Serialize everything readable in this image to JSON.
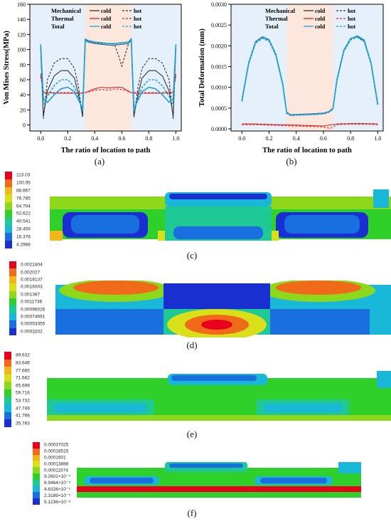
{
  "chart_data": [
    {
      "type": "line",
      "panel": "(a)",
      "xlabel": "The ratio of location to path",
      "ylabel": "Von Mises Stress(MPa)",
      "xlim": [
        -0.08,
        1.04
      ],
      "ylim": [
        -8,
        160
      ],
      "xticks": [
        "0.0",
        "0.2",
        "0.4",
        "0.6",
        "0.8",
        "1.0"
      ],
      "yticks": [
        "0",
        "20",
        "40",
        "60",
        "80",
        "100",
        "120",
        "140",
        "160"
      ],
      "shaded_region": [
        0.33,
        0.67
      ],
      "legend": {
        "rows": [
          "Mechanical",
          "Thermal",
          "Total"
        ],
        "columns": [
          "cold",
          "hot"
        ]
      },
      "series": [
        {
          "group": "Mechanical",
          "name": "cold",
          "color": "#333333",
          "style": "solid",
          "x": [
            0.0,
            0.02,
            0.05,
            0.1,
            0.15,
            0.2,
            0.25,
            0.28,
            0.31,
            0.33,
            0.35,
            0.4,
            0.45,
            0.5,
            0.55,
            0.6,
            0.65,
            0.67,
            0.69,
            0.72,
            0.75,
            0.8,
            0.85,
            0.9,
            0.95,
            0.98,
            1.0
          ],
          "y": [
            103,
            12,
            45,
            65,
            72,
            72,
            62,
            40,
            12,
            113,
            110,
            108,
            107,
            106,
            106,
            107,
            108,
            113,
            12,
            40,
            62,
            72,
            72,
            65,
            45,
            12,
            103
          ]
        },
        {
          "group": "Mechanical",
          "name": "hot",
          "color": "#333333",
          "style": "dash",
          "x": [
            0.0,
            0.02,
            0.05,
            0.1,
            0.15,
            0.2,
            0.25,
            0.28,
            0.31,
            0.33,
            0.35,
            0.4,
            0.45,
            0.5,
            0.55,
            0.58,
            0.6,
            0.62,
            0.65,
            0.67,
            0.69,
            0.72,
            0.75,
            0.8,
            0.85,
            0.9,
            0.95,
            0.98,
            1.0
          ],
          "y": [
            103,
            8,
            60,
            82,
            88,
            88,
            75,
            50,
            10,
            113,
            111,
            109,
            108,
            106,
            105,
            90,
            78,
            90,
            108,
            113,
            10,
            50,
            75,
            88,
            88,
            82,
            60,
            8,
            103
          ]
        },
        {
          "group": "Thermal",
          "name": "cold",
          "color": "#d62728",
          "style": "solid",
          "x": [
            0.0,
            0.02,
            0.1,
            0.2,
            0.3,
            0.33,
            0.36,
            0.4,
            0.45,
            0.5,
            0.55,
            0.6,
            0.64,
            0.67,
            0.7,
            0.8,
            0.9,
            0.98,
            1.0
          ],
          "y": [
            68,
            43,
            42,
            42,
            42,
            43,
            45,
            48,
            50,
            49,
            50,
            50,
            46,
            43,
            42,
            42,
            42,
            43,
            68
          ]
        },
        {
          "group": "Thermal",
          "name": "hot",
          "color": "#d62728",
          "style": "dash",
          "x": [
            0.0,
            0.02,
            0.1,
            0.2,
            0.3,
            0.33,
            0.36,
            0.4,
            0.45,
            0.5,
            0.55,
            0.6,
            0.64,
            0.67,
            0.7,
            0.8,
            0.9,
            0.98,
            1.0
          ],
          "y": [
            64,
            44,
            43,
            43,
            43,
            43,
            44,
            46,
            47,
            46,
            48,
            47,
            45,
            43,
            43,
            43,
            43,
            44,
            64
          ]
        },
        {
          "group": "Total",
          "name": "cold",
          "color": "#1f9fd8",
          "style": "solid",
          "x": [
            0.0,
            0.02,
            0.05,
            0.1,
            0.15,
            0.2,
            0.25,
            0.28,
            0.31,
            0.33,
            0.35,
            0.4,
            0.45,
            0.5,
            0.55,
            0.6,
            0.65,
            0.67,
            0.69,
            0.72,
            0.75,
            0.8,
            0.85,
            0.9,
            0.95,
            0.98,
            1.0
          ],
          "y": [
            107,
            35,
            30,
            40,
            48,
            50,
            44,
            33,
            22,
            114,
            112,
            110,
            109,
            108,
            108,
            109,
            110,
            114,
            22,
            33,
            44,
            50,
            48,
            40,
            30,
            35,
            107
          ]
        },
        {
          "group": "Total",
          "name": "hot",
          "color": "#1f9fd8",
          "style": "dash",
          "x": [
            0.0,
            0.02,
            0.05,
            0.1,
            0.15,
            0.2,
            0.25,
            0.28,
            0.31,
            0.33,
            0.35,
            0.4,
            0.45,
            0.5,
            0.55,
            0.6,
            0.65,
            0.67,
            0.69,
            0.72,
            0.75,
            0.8,
            0.85,
            0.9,
            0.95,
            0.98,
            1.0
          ],
          "y": [
            105,
            28,
            38,
            52,
            60,
            60,
            50,
            36,
            18,
            112,
            110,
            108,
            107,
            106,
            106,
            107,
            108,
            112,
            18,
            36,
            50,
            60,
            60,
            52,
            38,
            28,
            105
          ]
        }
      ]
    },
    {
      "type": "line",
      "panel": "(b)",
      "xlabel": "The ratio of location to path",
      "ylabel": "Total Deformation (mm)",
      "xlim": [
        -0.08,
        1.04
      ],
      "ylim": [
        -5e-05,
        0.003
      ],
      "xticks": [
        "0.0",
        "0.2",
        "0.4",
        "0.6",
        "0.8",
        "1.0"
      ],
      "yticks": [
        "0.0000",
        "0.0005",
        "0.0010",
        "0.0015",
        "0.0020",
        "0.0025",
        "0.0030"
      ],
      "shaded_region": [
        0.33,
        0.67
      ],
      "legend": {
        "rows": [
          "Mechanical",
          "Thermal",
          "Total"
        ],
        "columns": [
          "cold",
          "hot"
        ]
      },
      "series": [
        {
          "group": "Mechanical",
          "name": "cold",
          "color": "#333333",
          "style": "solid",
          "x": [
            0.0,
            0.05,
            0.1,
            0.15,
            0.2,
            0.25,
            0.3,
            0.33,
            0.36,
            0.4,
            0.5,
            0.6,
            0.64,
            0.67,
            0.7,
            0.75,
            0.8,
            0.85,
            0.9,
            0.95,
            1.0
          ],
          "y": [
            0.0007,
            0.0016,
            0.0021,
            0.00222,
            0.00215,
            0.0018,
            0.0011,
            0.0004,
            0.00034,
            0.00035,
            0.00036,
            0.00038,
            0.00042,
            0.0005,
            0.0012,
            0.0019,
            0.00218,
            0.00222,
            0.00212,
            0.0016,
            0.0006
          ]
        },
        {
          "group": "Mechanical",
          "name": "hot",
          "color": "#333333",
          "style": "dash",
          "x": [
            0.0,
            0.05,
            0.1,
            0.15,
            0.2,
            0.25,
            0.3,
            0.33,
            0.36,
            0.4,
            0.5,
            0.6,
            0.64,
            0.67,
            0.7,
            0.75,
            0.8,
            0.85,
            0.9,
            0.95,
            1.0
          ],
          "y": [
            0.00068,
            0.00158,
            0.00208,
            0.0022,
            0.00213,
            0.00178,
            0.00108,
            0.00039,
            0.00033,
            0.00034,
            0.00035,
            0.00037,
            0.00041,
            0.00049,
            0.00118,
            0.00188,
            0.00216,
            0.0022,
            0.0021,
            0.00158,
            0.00058
          ]
        },
        {
          "group": "Thermal",
          "name": "cold",
          "color": "#d62728",
          "style": "solid",
          "x": [
            0.0,
            0.1,
            0.2,
            0.3,
            0.4,
            0.5,
            0.6,
            0.7,
            0.8,
            0.9,
            1.0
          ],
          "y": [
            0.00012,
            0.00012,
            0.00011,
            0.0001,
            9e-05,
            8e-05,
            7e-05,
            0.00012,
            0.00013,
            0.00013,
            0.00012
          ]
        },
        {
          "group": "Thermal",
          "name": "hot",
          "color": "#d62728",
          "style": "dash",
          "x": [
            0.0,
            0.1,
            0.2,
            0.3,
            0.4,
            0.5,
            0.6,
            0.65,
            0.7,
            0.8,
            0.9,
            1.0
          ],
          "y": [
            0.0001,
            0.0001,
            9e-05,
            8e-05,
            7e-05,
            6e-05,
            5e-05,
            1e-05,
            0.0001,
            0.00011,
            0.00011,
            0.0001
          ]
        },
        {
          "group": "Total",
          "name": "cold",
          "color": "#1f9fd8",
          "style": "solid",
          "x": [
            0.0,
            0.05,
            0.1,
            0.15,
            0.2,
            0.25,
            0.3,
            0.33,
            0.36,
            0.4,
            0.5,
            0.6,
            0.64,
            0.67,
            0.7,
            0.75,
            0.8,
            0.85,
            0.9,
            0.95,
            1.0
          ],
          "y": [
            0.00069,
            0.00159,
            0.00209,
            0.00221,
            0.00214,
            0.00179,
            0.00109,
            0.00039,
            0.00033,
            0.00034,
            0.00035,
            0.00037,
            0.00041,
            0.00049,
            0.00119,
            0.00189,
            0.00217,
            0.00224,
            0.00214,
            0.0016,
            0.0006
          ]
        },
        {
          "group": "Total",
          "name": "hot",
          "color": "#1f9fd8",
          "style": "dash",
          "x": [
            0.0,
            0.05,
            0.1,
            0.15,
            0.2,
            0.25,
            0.3,
            0.33,
            0.36,
            0.4,
            0.5,
            0.6,
            0.64,
            0.67,
            0.7,
            0.75,
            0.8,
            0.85,
            0.9,
            0.95,
            1.0
          ],
          "y": [
            0.00066,
            0.00156,
            0.00206,
            0.00218,
            0.00211,
            0.00176,
            0.00106,
            0.00037,
            0.00032,
            0.00033,
            0.00034,
            0.00036,
            0.0004,
            0.00047,
            0.00116,
            0.00186,
            0.00214,
            0.00221,
            0.00211,
            0.00157,
            0.00056
          ]
        }
      ]
    }
  ],
  "contour_panels": [
    {
      "label": "(c)",
      "legend_values": [
        "113.03",
        "100.95",
        "88.867",
        "76.785",
        "64.704",
        "52.622",
        "40.541",
        "28.459",
        "16.378",
        "4.2966"
      ]
    },
    {
      "label": "(d)",
      "legend_values": [
        "0.0022404",
        "0.002027",
        "0.0018137",
        "0.0016003",
        "0.001387",
        "0.0011736",
        "0.00096026",
        "0.00074691",
        "0.00053355",
        "0.0003202"
      ]
    },
    {
      "label": "(e)",
      "legend_values": [
        "89.632",
        "83.649",
        "77.665",
        "71.682",
        "65.699",
        "59.716",
        "53.732",
        "47.749",
        "41.766",
        "35.783"
      ]
    },
    {
      "label": "(f)",
      "legend_values": [
        "0.00037025",
        "0.00018515",
        "0.0001601",
        "0.00013888",
        "0.00011574",
        "9.2601×10⁻⁵",
        "6.9464×10⁻⁵",
        "4.6326×10⁻⁵",
        "2.3189×10⁻⁵",
        "5.1236×10⁻⁸"
      ]
    }
  ],
  "colors": {
    "scale": [
      "#e8001c",
      "#f06a1a",
      "#f2b51c",
      "#d9e01a",
      "#8ed81c",
      "#2fd02a",
      "#1fc995",
      "#19b7d8",
      "#1a6fe0",
      "#1a2fd0"
    ],
    "shade": "#fde7dd",
    "plot_bg": "#e6f0fa"
  }
}
